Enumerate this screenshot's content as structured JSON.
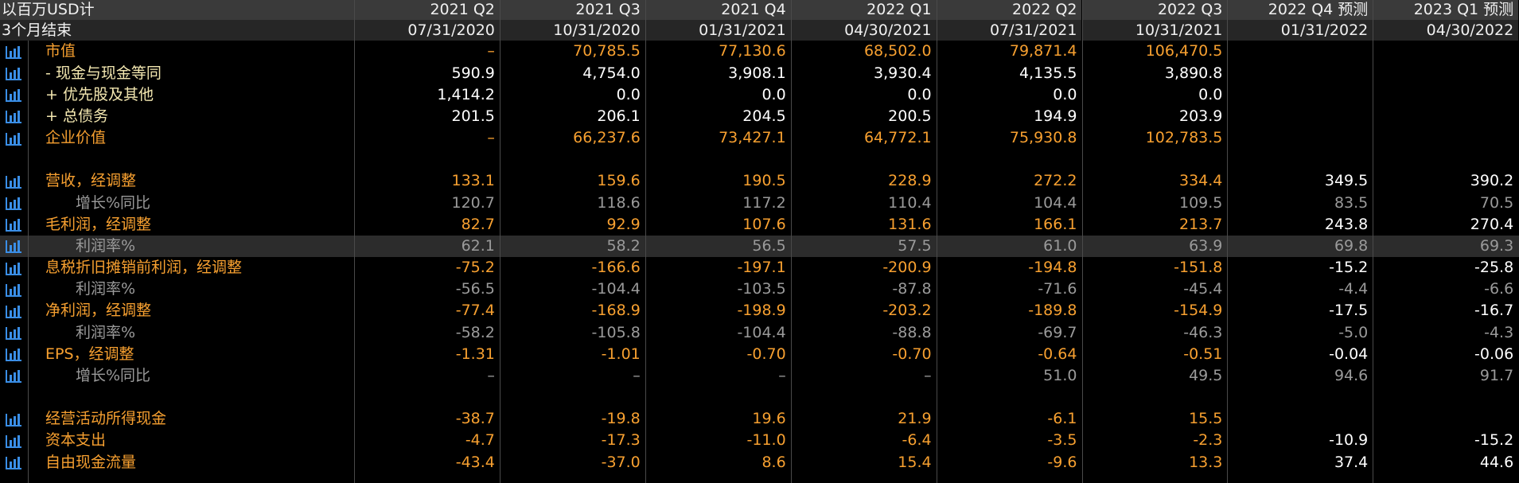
{
  "header": {
    "title": "以百万USD计",
    "subtitle": "3个月结束"
  },
  "columns": [
    {
      "period": "2021 Q2",
      "date": "07/31/2020"
    },
    {
      "period": "2021 Q3",
      "date": "10/31/2020"
    },
    {
      "period": "2021 Q4",
      "date": "01/31/2021"
    },
    {
      "period": "2022 Q1",
      "date": "04/30/2021"
    },
    {
      "period": "2022 Q2",
      "date": "07/31/2021"
    },
    {
      "period": "2022 Q3",
      "date": "10/31/2021"
    },
    {
      "period": "2022 Q4 预测",
      "date": "01/31/2022"
    },
    {
      "period": "2023 Q1 预测",
      "date": "04/30/2022"
    }
  ],
  "sections": [
    {
      "rows": [
        {
          "label": "市值",
          "values": [
            "–",
            "70,785.5",
            "77,130.6",
            "68,502.0",
            "79,871.4",
            "106,470.5",
            null,
            null
          ]
        },
        {
          "label": "- 现金与现金等同",
          "values": [
            "590.9",
            "4,754.0",
            "3,908.1",
            "3,930.4",
            "4,135.5",
            "3,890.8",
            null,
            null
          ]
        },
        {
          "label": "+ 优先股及其他",
          "values": [
            "1,414.2",
            "0.0",
            "0.0",
            "0.0",
            "0.0",
            "0.0",
            null,
            null
          ]
        },
        {
          "label": "+ 总债务",
          "values": [
            "201.5",
            "206.1",
            "204.5",
            "200.5",
            "194.9",
            "203.9",
            null,
            null
          ]
        },
        {
          "label": "企业价值",
          "values": [
            "–",
            "66,237.6",
            "73,427.1",
            "64,772.1",
            "75,930.8",
            "102,783.5",
            null,
            null
          ]
        }
      ]
    },
    {
      "rows": [
        {
          "label": "营收，经调整",
          "values": [
            "133.1",
            "159.6",
            "190.5",
            "228.9",
            "272.2",
            "334.4",
            "349.5",
            "390.2"
          ]
        },
        {
          "label": "增长%同比",
          "values": [
            "120.7",
            "118.6",
            "117.2",
            "110.4",
            "104.4",
            "109.5",
            "83.5",
            "70.5"
          ]
        },
        {
          "label": "毛利润，经调整",
          "values": [
            "82.7",
            "92.9",
            "107.6",
            "131.6",
            "166.1",
            "213.7",
            "243.8",
            "270.4"
          ]
        },
        {
          "label": "利润率%",
          "values": [
            "62.1",
            "58.2",
            "56.5",
            "57.5",
            "61.0",
            "63.9",
            "69.8",
            "69.3"
          ]
        },
        {
          "label": "息税折旧摊销前利润，经调整",
          "values": [
            "-75.2",
            "-166.6",
            "-197.1",
            "-200.9",
            "-194.8",
            "-151.8",
            "-15.2",
            "-25.8"
          ]
        },
        {
          "label": "利润率%",
          "values": [
            "-56.5",
            "-104.4",
            "-103.5",
            "-87.8",
            "-71.6",
            "-45.4",
            "-4.4",
            "-6.6"
          ]
        },
        {
          "label": "净利润，经调整",
          "values": [
            "-77.4",
            "-168.9",
            "-198.9",
            "-203.2",
            "-189.8",
            "-154.9",
            "-17.5",
            "-16.7"
          ]
        },
        {
          "label": "利润率%",
          "values": [
            "-58.2",
            "-105.8",
            "-104.4",
            "-88.8",
            "-69.7",
            "-46.3",
            "-5.0",
            "-4.3"
          ]
        },
        {
          "label": "EPS，经调整",
          "values": [
            "-1.31",
            "-1.01",
            "-0.70",
            "-0.70",
            "-0.64",
            "-0.51",
            "-0.04",
            "-0.06"
          ]
        },
        {
          "label": "增长%同比",
          "values": [
            "–",
            "–",
            "–",
            "–",
            "51.0",
            "49.5",
            "94.6",
            "91.7"
          ]
        }
      ]
    },
    {
      "rows": [
        {
          "label": "经营活动所得现金",
          "values": [
            "-38.7",
            "-19.8",
            "19.6",
            "21.9",
            "-6.1",
            "15.5",
            null,
            null
          ]
        },
        {
          "label": "资本支出",
          "values": [
            "-4.7",
            "-17.3",
            "-11.0",
            "-6.4",
            "-3.5",
            "-2.3",
            "-10.9",
            "-15.2"
          ]
        },
        {
          "label": "自由现金流量",
          "values": [
            "-43.4",
            "-37.0",
            "8.6",
            "15.4",
            "-9.6",
            "13.3",
            "37.4",
            "44.6"
          ]
        }
      ]
    }
  ]
}
